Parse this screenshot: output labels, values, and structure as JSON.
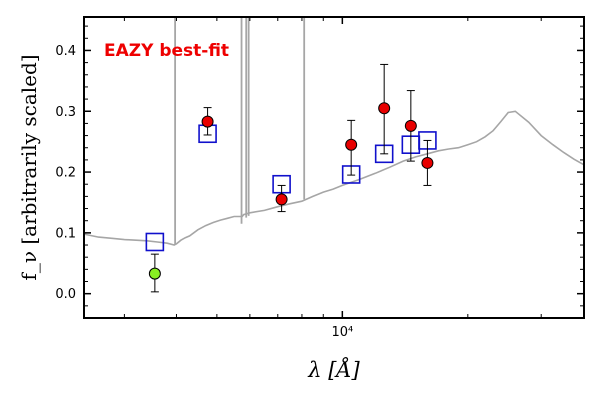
{
  "chart_data": {
    "type": "scatter",
    "title": "",
    "xlabel": "λ [Å]",
    "ylabel": "f_ν [arbitrarily scaled]",
    "xscale": "log",
    "xlim": [
      2400,
      38000
    ],
    "ylim": [
      -0.04,
      0.455
    ],
    "yticks": [
      0.0,
      0.1,
      0.2,
      0.3,
      0.4
    ],
    "ytick_labels": [
      "0.0",
      "0.1",
      "0.2",
      "0.3",
      "0.4"
    ],
    "xticks": [
      10000
    ],
    "xtick_labels": [
      "10⁴"
    ],
    "grid": false,
    "annotation": {
      "text": "EAZY best-fit",
      "color": "#ee0000"
    },
    "colors": {
      "template": "#a6a6a6",
      "model_box": "#1010cc",
      "observed": "#e80000",
      "observed_low": "#88ee22",
      "errorbar": "#000000"
    },
    "series": [
      {
        "kind": "template_line",
        "x": [
          2400,
          2600,
          2800,
          3000,
          3200,
          3400,
          3600,
          3800,
          3950,
          4000,
          4100,
          4200,
          4300,
          4500,
          4700,
          4900,
          5100,
          5300,
          5500,
          5750,
          5800,
          6000,
          6500,
          7000,
          7500,
          8000,
          8500,
          9000,
          9500,
          10000,
          11000,
          12000,
          13000,
          14000,
          15000,
          16000,
          17000,
          18000,
          19000,
          20000,
          21000,
          22000,
          23000,
          24000,
          25000,
          26000,
          28000,
          30000,
          32000,
          34000,
          36000,
          38000
        ],
        "y": [
          0.098,
          0.093,
          0.091,
          0.089,
          0.088,
          0.087,
          0.085,
          0.083,
          0.08,
          0.082,
          0.088,
          0.092,
          0.095,
          0.105,
          0.112,
          0.117,
          0.121,
          0.124,
          0.127,
          0.127,
          0.13,
          0.133,
          0.137,
          0.143,
          0.148,
          0.152,
          0.16,
          0.167,
          0.172,
          0.178,
          0.188,
          0.198,
          0.208,
          0.218,
          0.225,
          0.23,
          0.235,
          0.238,
          0.24,
          0.245,
          0.25,
          0.258,
          0.268,
          0.283,
          0.298,
          0.3,
          0.282,
          0.26,
          0.245,
          0.232,
          0.221,
          0.212
        ]
      },
      {
        "kind": "emission_lines",
        "x": [
          3970,
          5730,
          5880,
          5960,
          8100
        ],
        "y_base": [
          0.08,
          0.115,
          0.125,
          0.128,
          0.155
        ]
      },
      {
        "kind": "model_photometry",
        "x": [
          3550,
          4750,
          7150,
          10500,
          12600,
          14600,
          16000
        ],
        "y": [
          0.085,
          0.263,
          0.18,
          0.196,
          0.23,
          0.245,
          0.252
        ]
      },
      {
        "kind": "observed_photometry",
        "x": [
          3550,
          4750,
          7150,
          10500,
          12600,
          14600,
          16000
        ],
        "y": [
          0.033,
          0.283,
          0.155,
          0.245,
          0.305,
          0.276,
          0.215
        ],
        "yerr_low": [
          0.03,
          0.022,
          0.02,
          0.05,
          0.075,
          0.058,
          0.037
        ],
        "yerr_high": [
          0.032,
          0.023,
          0.023,
          0.04,
          0.072,
          0.058,
          0.037
        ],
        "highlight_index": 0
      }
    ]
  }
}
